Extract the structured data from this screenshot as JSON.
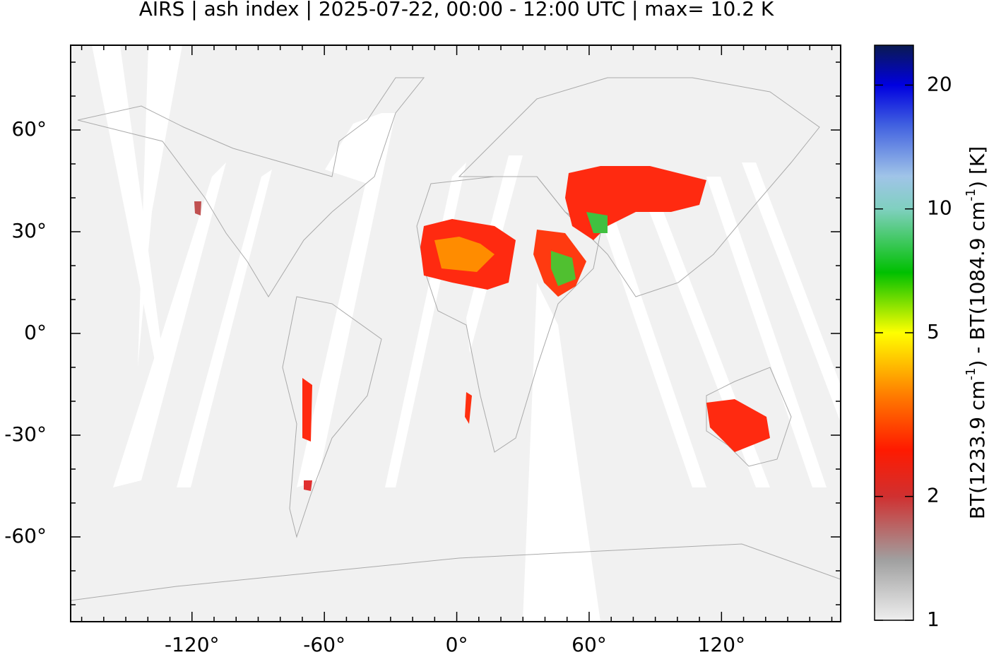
{
  "chart_data": {
    "type": "map",
    "title": "AIRS | ash index | 2025-07-22, 00:00 - 12:00 UTC | max= 10.2 K",
    "xlim": [
      -175,
      174
    ],
    "ylim": [
      -85,
      85
    ],
    "xticks": [
      {
        "value": -120,
        "label": "-120°"
      },
      {
        "value": -60,
        "label": "-60°"
      },
      {
        "value": 0,
        "label": "0°"
      },
      {
        "value": 60,
        "label": "60°"
      },
      {
        "value": 120,
        "label": "120°"
      }
    ],
    "yticks": [
      {
        "value": 60,
        "label": "60°"
      },
      {
        "value": 30,
        "label": "30°"
      },
      {
        "value": 0,
        "label": "0°"
      },
      {
        "value": -30,
        "label": "-30°"
      },
      {
        "value": -60,
        "label": "-60°"
      }
    ],
    "xminorticks": [
      -170,
      -160,
      -150,
      -140,
      -130,
      -110,
      -100,
      -90,
      -80,
      -70,
      -50,
      -40,
      -30,
      -20,
      -10,
      10,
      20,
      30,
      40,
      50,
      70,
      80,
      90,
      100,
      110,
      130,
      140,
      150,
      160,
      170
    ],
    "yminorticks": [
      -80,
      -70,
      -50,
      -40,
      -20,
      -10,
      10,
      20,
      40,
      50,
      70,
      80
    ],
    "background": "#f1f1f1",
    "colorbar": {
      "log": true,
      "clim": [
        1,
        25
      ],
      "ticks": [
        1,
        2,
        5,
        10,
        20
      ],
      "label": [
        "BT(1233.9 cm",
        "-1",
        ") - BT(1084.9 cm",
        "-1",
        ") [K]"
      ],
      "colors": [
        {
          "value": 1,
          "color": "#eeeeee"
        },
        {
          "value": 1.4,
          "color": "#a0a0a0"
        },
        {
          "value": 2,
          "color": "#d03030"
        },
        {
          "value": 2.6,
          "color": "#ff1a00"
        },
        {
          "value": 3.5,
          "color": "#ff7a00"
        },
        {
          "value": 5,
          "color": "#ffff00"
        },
        {
          "value": 7,
          "color": "#00c000"
        },
        {
          "value": 10,
          "color": "#80d0c0"
        },
        {
          "value": 12,
          "color": "#a0c4e8"
        },
        {
          "value": 16,
          "color": "#4060e0"
        },
        {
          "value": 20,
          "color": "#0000e0"
        },
        {
          "value": 25,
          "color": "#0a1a50"
        }
      ]
    }
  }
}
